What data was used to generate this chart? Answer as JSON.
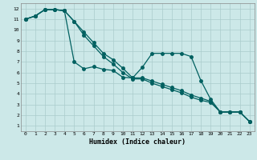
{
  "xlabel": "Humidex (Indice chaleur)",
  "bg_color": "#cce8e8",
  "grid_color": "#aacccc",
  "line_color": "#006060",
  "xlim": [
    -0.5,
    23.5
  ],
  "ylim": [
    0.5,
    12.5
  ],
  "xticks": [
    0,
    1,
    2,
    3,
    4,
    5,
    6,
    7,
    8,
    9,
    10,
    11,
    12,
    13,
    14,
    15,
    16,
    17,
    18,
    19,
    20,
    21,
    22,
    23
  ],
  "yticks": [
    1,
    2,
    3,
    4,
    5,
    6,
    7,
    8,
    9,
    10,
    11,
    12
  ],
  "line1_x": [
    0,
    1,
    2,
    3,
    4,
    5,
    6,
    7,
    8,
    9,
    10,
    11,
    12,
    13,
    14,
    15,
    16,
    17,
    18,
    19,
    20,
    21,
    22,
    23
  ],
  "line1_y": [
    11,
    11.3,
    11.9,
    11.9,
    11.8,
    7.0,
    6.35,
    6.55,
    6.3,
    6.2,
    5.55,
    5.5,
    6.5,
    7.8,
    7.8,
    7.8,
    7.8,
    7.5,
    5.25,
    3.5,
    2.3,
    2.3,
    2.3,
    1.4
  ],
  "line2_x": [
    0,
    1,
    2,
    3,
    4,
    5,
    6,
    7,
    8,
    9,
    10,
    11,
    12,
    13,
    14,
    15,
    16,
    17,
    18,
    19,
    20,
    21,
    22,
    23
  ],
  "line2_y": [
    11,
    11.3,
    11.9,
    11.9,
    11.8,
    10.8,
    9.5,
    8.5,
    7.5,
    6.8,
    6.0,
    5.4,
    5.4,
    5.0,
    4.7,
    4.4,
    4.1,
    3.7,
    3.4,
    3.2,
    2.3,
    2.3,
    2.3,
    1.4
  ],
  "line3_x": [
    0,
    1,
    2,
    3,
    4,
    5,
    6,
    7,
    8,
    9,
    10,
    11,
    12,
    13,
    14,
    15,
    16,
    17,
    18,
    19,
    20,
    21,
    22,
    23
  ],
  "line3_y": [
    11,
    11.3,
    11.9,
    11.9,
    11.8,
    10.8,
    9.8,
    8.8,
    7.8,
    7.2,
    6.4,
    5.5,
    5.5,
    5.2,
    4.9,
    4.6,
    4.3,
    3.9,
    3.6,
    3.3,
    2.3,
    2.3,
    2.3,
    1.4
  ]
}
